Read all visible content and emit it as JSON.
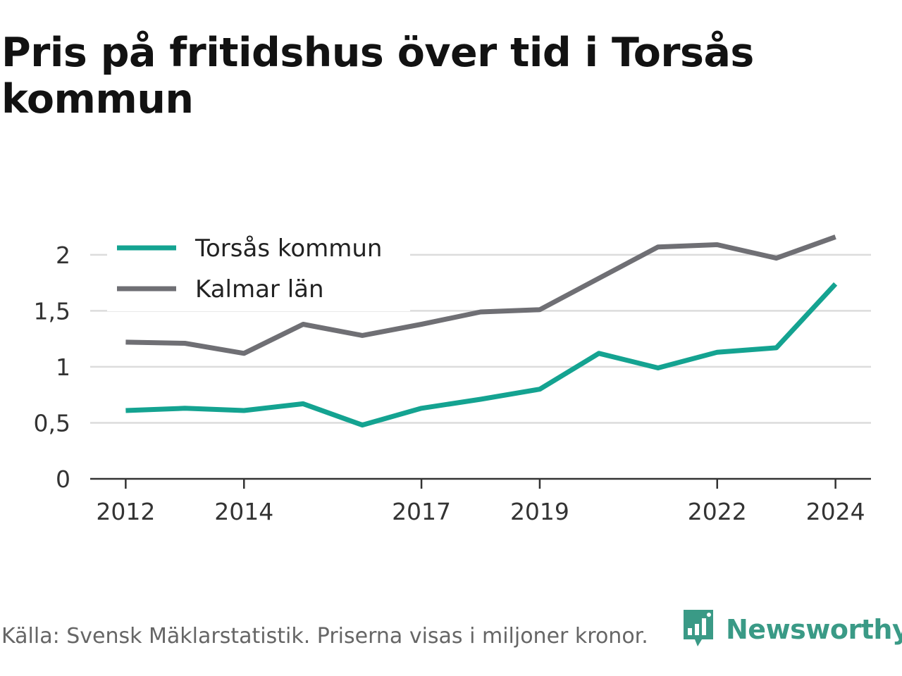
{
  "page": {
    "title": "Pris på fritidshus över tid i Torsås kommun",
    "footer": "Källa: Svensk Mäklarstatistik. Priserna visas i miljoner kronor.",
    "brand": "Newsworthy",
    "brand_icon": "newsworthy-chart-bubble-icon",
    "brand_color": "#3a9a86"
  },
  "chart_data": {
    "type": "line",
    "title": "",
    "xlabel": "",
    "ylabel": "",
    "x": [
      2012,
      2013,
      2014,
      2015,
      2016,
      2017,
      2018,
      2019,
      2020,
      2021,
      2022,
      2023,
      2024
    ],
    "x_ticks": [
      "2012",
      "2014",
      "2017",
      "2019",
      "2022",
      "2024"
    ],
    "x_tick_values": [
      2012,
      2014,
      2017,
      2019,
      2022,
      2024
    ],
    "y_ticks": [
      "0",
      "0,5",
      "1",
      "1,5",
      "2"
    ],
    "y_tick_values": [
      0,
      0.5,
      1,
      1.5,
      2
    ],
    "ylim": [
      0,
      2.2
    ],
    "xlim": [
      2011.4,
      2024.6
    ],
    "grid": true,
    "legend_position": "top-left",
    "series": [
      {
        "name": "Torsås kommun",
        "color": "#14a391",
        "values": [
          0.61,
          0.63,
          0.61,
          0.67,
          0.48,
          0.63,
          0.71,
          0.8,
          1.12,
          0.99,
          1.13,
          1.17,
          1.74
        ]
      },
      {
        "name": "Kalmar län",
        "color": "#6f6f74",
        "values": [
          1.22,
          1.21,
          1.12,
          1.38,
          1.28,
          1.38,
          1.49,
          1.51,
          1.79,
          2.07,
          2.09,
          1.97,
          2.16
        ]
      }
    ]
  }
}
